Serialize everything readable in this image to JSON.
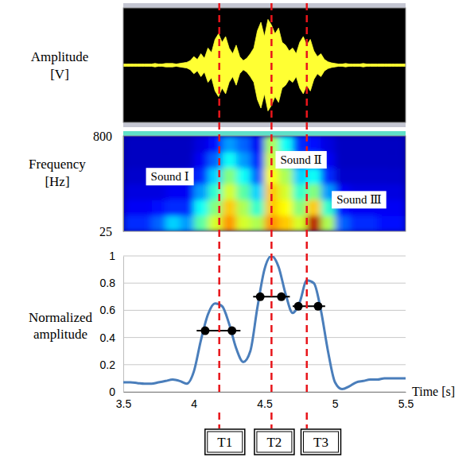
{
  "chart_data": [
    {
      "type": "waveform",
      "ylabel": "Amplitude [V]",
      "xlim": [
        3.5,
        5.5
      ],
      "ylim": [
        -1,
        1
      ],
      "tick_labels": false,
      "color": "#ffff33",
      "x": [
        3.5,
        3.525,
        3.55,
        3.575,
        3.6,
        3.625,
        3.65,
        3.675,
        3.7,
        3.725,
        3.75,
        3.775,
        3.8,
        3.825,
        3.85,
        3.875,
        3.9,
        3.925,
        3.95,
        3.975,
        4,
        4.025,
        4.05,
        4.075,
        4.1,
        4.125,
        4.15,
        4.175,
        4.2,
        4.225,
        4.25,
        4.275,
        4.3,
        4.325,
        4.35,
        4.375,
        4.4,
        4.425,
        4.45,
        4.475,
        4.5,
        4.525,
        4.55,
        4.575,
        4.6,
        4.625,
        4.65,
        4.675,
        4.7,
        4.725,
        4.75,
        4.775,
        4.8,
        4.825,
        4.85,
        4.875,
        4.9,
        4.925,
        4.95,
        4.975,
        5,
        5.025,
        5.05,
        5.075,
        5.1,
        5.125,
        5.15,
        5.175,
        5.2,
        5.225,
        5.25,
        5.275,
        5.3,
        5.325,
        5.35,
        5.375,
        5.4,
        5.425,
        5.45,
        5.475,
        5.5
      ],
      "values": [
        0.02,
        0.02,
        0.02,
        0.02,
        0.02,
        0.02,
        0.02,
        0.02,
        0.02,
        0.03,
        0.02,
        0.02,
        0.03,
        0.03,
        0.03,
        0.02,
        0.03,
        0.04,
        0.05,
        0.08,
        0.15,
        0.1,
        0.2,
        0.12,
        0.3,
        0.22,
        0.45,
        0.55,
        0.4,
        0.5,
        0.3,
        0.2,
        0.35,
        0.15,
        0.08,
        0.12,
        0.2,
        0.3,
        0.6,
        0.75,
        0.5,
        0.8,
        0.7,
        0.55,
        0.65,
        0.4,
        0.35,
        0.25,
        0.3,
        0.2,
        0.4,
        0.5,
        0.35,
        0.45,
        0.25,
        0.15,
        0.2,
        0.1,
        0.06,
        0.04,
        0.03,
        0.02,
        0.02,
        0.03,
        0.02,
        0.02,
        0.02,
        0.02,
        0.03,
        0.02,
        0.02,
        0.02,
        0.02,
        0.02,
        0.02,
        0.02,
        0.02,
        0.02,
        0.02,
        0.02,
        0.02
      ]
    },
    {
      "type": "heatmap",
      "ylabel": "Frequency [Hz]",
      "xlim": [
        3.5,
        5.5
      ],
      "ylim": [
        25,
        800
      ],
      "yticks": [
        25,
        800
      ],
      "tick_labels": "y",
      "x_bins": [
        3.5,
        3.6,
        3.7,
        3.8,
        3.9,
        4,
        4.1,
        4.2,
        4.3,
        4.4,
        4.5,
        4.6,
        4.7,
        4.8,
        4.9,
        5,
        5.1,
        5.2,
        5.3,
        5.4,
        5.5
      ],
      "y_bins": [
        25,
        154,
        283,
        412,
        541,
        670,
        800
      ],
      "zlim": [
        0,
        1
      ],
      "z": [
        [
          0.15,
          0.15,
          0.2,
          0.3,
          0.25,
          0.45,
          0.6,
          0.75,
          0.6,
          0.55,
          0.75,
          0.7,
          0.6,
          0.95,
          0.55,
          0.2,
          0.15,
          0.15,
          0.12,
          0.12
        ],
        [
          0.1,
          0.1,
          0.12,
          0.15,
          0.15,
          0.35,
          0.5,
          0.7,
          0.55,
          0.4,
          0.7,
          0.65,
          0.5,
          0.7,
          0.4,
          0.12,
          0.1,
          0.1,
          0.1,
          0.1
        ],
        [
          0.08,
          0.08,
          0.08,
          0.1,
          0.1,
          0.25,
          0.4,
          0.6,
          0.45,
          0.3,
          0.7,
          0.6,
          0.4,
          0.5,
          0.25,
          0.1,
          0.08,
          0.08,
          0.08,
          0.08
        ],
        [
          0.06,
          0.06,
          0.06,
          0.06,
          0.08,
          0.15,
          0.3,
          0.5,
          0.35,
          0.2,
          0.65,
          0.55,
          0.3,
          0.35,
          0.15,
          0.06,
          0.06,
          0.06,
          0.06,
          0.06
        ],
        [
          0.05,
          0.05,
          0.05,
          0.05,
          0.05,
          0.1,
          0.2,
          0.35,
          0.25,
          0.15,
          0.6,
          0.45,
          0.2,
          0.2,
          0.1,
          0.05,
          0.05,
          0.05,
          0.05,
          0.05
        ],
        [
          0.05,
          0.05,
          0.05,
          0.05,
          0.05,
          0.08,
          0.12,
          0.25,
          0.2,
          0.1,
          0.55,
          0.35,
          0.15,
          0.12,
          0.08,
          0.05,
          0.05,
          0.05,
          0.05,
          0.05
        ]
      ],
      "annotations": [
        {
          "text": "Sound Ⅰ",
          "x": 3.83,
          "y": 469
        },
        {
          "text": "Sound Ⅱ",
          "x": 4.76,
          "y": 606
        },
        {
          "text": "Sound Ⅲ",
          "x": 5.17,
          "y": 281
        }
      ]
    },
    {
      "type": "line",
      "ylabel": "Normalized amplitude",
      "xlabel": "Time [s]",
      "xlim": [
        3.5,
        5.5
      ],
      "ylim": [
        0,
        1
      ],
      "xticks": [
        3.5,
        4,
        4.5,
        5,
        5.5
      ],
      "yticks": [
        0,
        0.2,
        0.4,
        0.6,
        0.8,
        1
      ],
      "grid": true,
      "x": [
        3.5,
        3.55,
        3.6,
        3.65,
        3.7,
        3.75,
        3.8,
        3.85,
        3.9,
        3.95,
        4,
        4.05,
        4.1,
        4.15,
        4.2,
        4.25,
        4.3,
        4.35,
        4.4,
        4.45,
        4.5,
        4.55,
        4.6,
        4.65,
        4.7,
        4.75,
        4.8,
        4.85,
        4.9,
        4.95,
        5,
        5.05,
        5.1,
        5.15,
        5.2,
        5.25,
        5.3,
        5.35,
        5.4,
        5.45,
        5.5
      ],
      "series": [
        {
          "color": "#4a7ebb",
          "values": [
            0.07,
            0.07,
            0.065,
            0.06,
            0.06,
            0.07,
            0.08,
            0.09,
            0.08,
            0.06,
            0.15,
            0.38,
            0.57,
            0.65,
            0.63,
            0.5,
            0.32,
            0.22,
            0.3,
            0.62,
            0.9,
            1,
            0.92,
            0.72,
            0.58,
            0.66,
            0.82,
            0.8,
            0.6,
            0.3,
            0.07,
            0.02,
            0.04,
            0.07,
            0.08,
            0.09,
            0.09,
            0.1,
            0.1,
            0.1,
            0.1
          ]
        }
      ],
      "widths": {
        "color": "#000000",
        "marker": "circle",
        "items": [
          {
            "y": 0.45,
            "x": [
              4.08,
              4.27
            ],
            "span": [
              4.02,
              4.33
            ]
          },
          {
            "y": 0.7,
            "x": [
              4.47,
              4.62
            ],
            "span": [
              4.42,
              4.68
            ]
          },
          {
            "y": 0.63,
            "x": [
              4.74,
              4.88
            ],
            "span": [
              4.7,
              4.93
            ]
          }
        ]
      },
      "vlines": {
        "values": [
          4.18,
          4.55,
          4.8
        ],
        "color": "#e8151b",
        "line_style": "dashed"
      },
      "intervals": [
        {
          "label": "T1",
          "x": 4.22
        },
        {
          "label": "T2",
          "x": 4.57
        },
        {
          "label": "T3",
          "x": 4.9
        }
      ]
    }
  ]
}
